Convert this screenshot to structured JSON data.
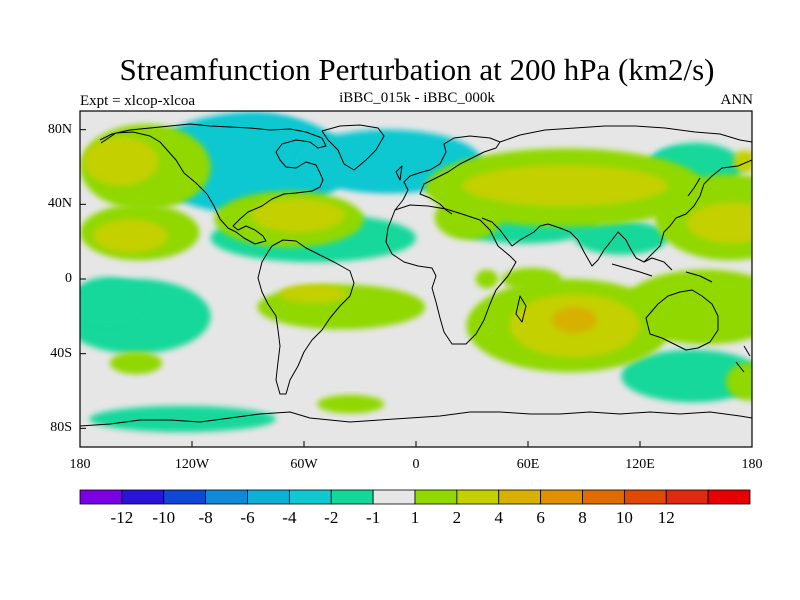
{
  "title": "Streamfunction Perturbation at 200 hPa (km2/s)",
  "subtitle_left": "Expt = xlcop-xlcoa",
  "subtitle_center": "iBBC_015k - iBBC_000k",
  "subtitle_right": "ANN",
  "map": {
    "projection": "cylindrical equidistant",
    "lon_range": [
      -180,
      180
    ],
    "lat_range": [
      -90,
      90
    ],
    "background_color": "#e6e6e6",
    "x_ticks": [
      {
        "lon": -180,
        "label": "180"
      },
      {
        "lon": -120,
        "label": "120W"
      },
      {
        "lon": -60,
        "label": "60W"
      },
      {
        "lon": 0,
        "label": "0"
      },
      {
        "lon": 60,
        "label": "60E"
      },
      {
        "lon": 120,
        "label": "120E"
      },
      {
        "lon": 180,
        "label": "180"
      }
    ],
    "y_ticks": [
      {
        "lat": 80,
        "label": "80N"
      },
      {
        "lat": 40,
        "label": "40N"
      },
      {
        "lat": 0,
        "label": "0"
      },
      {
        "lat": -40,
        "label": "40S"
      },
      {
        "lat": -80,
        "label": "80S"
      }
    ],
    "field_regions": [
      {
        "level": -6,
        "lon": -78,
        "lat": 61,
        "rlon": 28,
        "rlat": 20
      },
      {
        "level": -4,
        "lon": -85,
        "lat": 64,
        "rlon": 40,
        "rlat": 24
      },
      {
        "level": -4,
        "lon": -15,
        "lat": 61,
        "rlon": 40,
        "rlat": 13
      },
      {
        "level": -2,
        "lon": -90,
        "lat": 62,
        "rlon": 55,
        "rlat": 27
      },
      {
        "level": -2,
        "lon": -15,
        "lat": 63,
        "rlon": 50,
        "rlat": 17
      },
      {
        "level": -2,
        "lon": -55,
        "lat": 22,
        "rlon": 40,
        "rlat": 9
      },
      {
        "level": -2,
        "lon": 60,
        "lat": 30,
        "rlon": 25,
        "rlat": 6
      },
      {
        "level": -2,
        "lon": -153,
        "lat": -15,
        "rlon": 30,
        "rlat": 12
      },
      {
        "level": -2,
        "lon": 150,
        "lat": -54,
        "rlon": 28,
        "rlat": 9
      },
      {
        "level": -2,
        "lon": 140,
        "lat": 62,
        "rlon": 15,
        "rlat": 8
      },
      {
        "level": -1,
        "lon": -150,
        "lat": -20,
        "rlon": 40,
        "rlat": 20
      },
      {
        "level": -1,
        "lon": -125,
        "lat": -75,
        "rlon": 50,
        "rlat": 7
      },
      {
        "level": -1,
        "lon": 58,
        "lat": 30,
        "rlon": 40,
        "rlat": 11
      },
      {
        "level": -1,
        "lon": 110,
        "lat": 22,
        "rlon": 25,
        "rlat": 9
      },
      {
        "level": -1,
        "lon": 148,
        "lat": -52,
        "rlon": 38,
        "rlat": 14
      },
      {
        "level": -1,
        "lon": -55,
        "lat": 22,
        "rlon": 55,
        "rlat": 13
      },
      {
        "level": -1,
        "lon": 150,
        "lat": 60,
        "rlon": 25,
        "rlat": 13
      },
      {
        "level": -1,
        "lon": -165,
        "lat": -12,
        "rlon": 20,
        "rlat": 13
      },
      {
        "level": 1,
        "lon": -145,
        "lat": 60,
        "rlon": 35,
        "rlat": 23
      },
      {
        "level": 1,
        "lon": 80,
        "lat": 49,
        "rlon": 75,
        "rlat": 21
      },
      {
        "level": 1,
        "lon": -148,
        "lat": 25,
        "rlon": 32,
        "rlat": 15
      },
      {
        "level": 1,
        "lon": -68,
        "lat": 32,
        "rlon": 40,
        "rlat": 15
      },
      {
        "level": 1,
        "lon": 28,
        "lat": 33,
        "rlon": 18,
        "rlat": 12
      },
      {
        "level": 1,
        "lon": 168,
        "lat": 33,
        "rlon": 40,
        "rlat": 23
      },
      {
        "level": 1,
        "lon": 62,
        "lat": 0,
        "rlon": 16,
        "rlat": 6
      },
      {
        "level": 1,
        "lon": 82,
        "lat": -25,
        "rlon": 55,
        "rlat": 25
      },
      {
        "level": 1,
        "lon": -40,
        "lat": -15,
        "rlon": 45,
        "rlat": 12
      },
      {
        "level": 1,
        "lon": 155,
        "lat": -15,
        "rlon": 45,
        "rlat": 20
      },
      {
        "level": 1,
        "lon": -150,
        "lat": -45,
        "rlon": 14,
        "rlat": 6
      },
      {
        "level": 1,
        "lon": -35,
        "lat": -67,
        "rlon": 18,
        "rlat": 5
      },
      {
        "level": 1,
        "lon": 38,
        "lat": 0,
        "rlon": 6,
        "rlat": 5
      },
      {
        "level": 1,
        "lon": 178,
        "lat": -55,
        "rlon": 12,
        "rlat": 10
      },
      {
        "level": 2,
        "lon": 80,
        "lat": 50,
        "rlon": 55,
        "rlat": 11
      },
      {
        "level": 2,
        "lon": -158,
        "lat": 63,
        "rlon": 20,
        "rlat": 13
      },
      {
        "level": 2,
        "lon": -153,
        "lat": 23,
        "rlon": 20,
        "rlat": 9
      },
      {
        "level": 2,
        "lon": -63,
        "lat": 34,
        "rlon": 25,
        "rlat": 9
      },
      {
        "level": 2,
        "lon": 170,
        "lat": 30,
        "rlon": 25,
        "rlat": 11
      },
      {
        "level": 2,
        "lon": 85,
        "lat": -25,
        "rlon": 35,
        "rlat": 17
      },
      {
        "level": 2,
        "lon": -55,
        "lat": -8,
        "rlon": 18,
        "rlat": 5
      },
      {
        "level": 2,
        "lon": 176,
        "lat": 63,
        "rlon": 6,
        "rlat": 6
      },
      {
        "level": 4,
        "lon": 85,
        "lat": -22,
        "rlon": 12,
        "rlat": 7
      }
    ]
  },
  "colorbar": {
    "colors": [
      "#7c00e4",
      "#2a14d8",
      "#0e48d4",
      "#0e8ad8",
      "#0eb0d8",
      "#10c8d0",
      "#14d89a",
      "#e6e6e6",
      "#90d800",
      "#c4d000",
      "#d8b000",
      "#e09000",
      "#e06c00",
      "#e04a00",
      "#e02a10",
      "#e80000"
    ],
    "labels": [
      "-12",
      "-10",
      "-8",
      "-6",
      "-4",
      "-2",
      "-1",
      "1",
      "2",
      "4",
      "6",
      "8",
      "10",
      "12"
    ]
  }
}
